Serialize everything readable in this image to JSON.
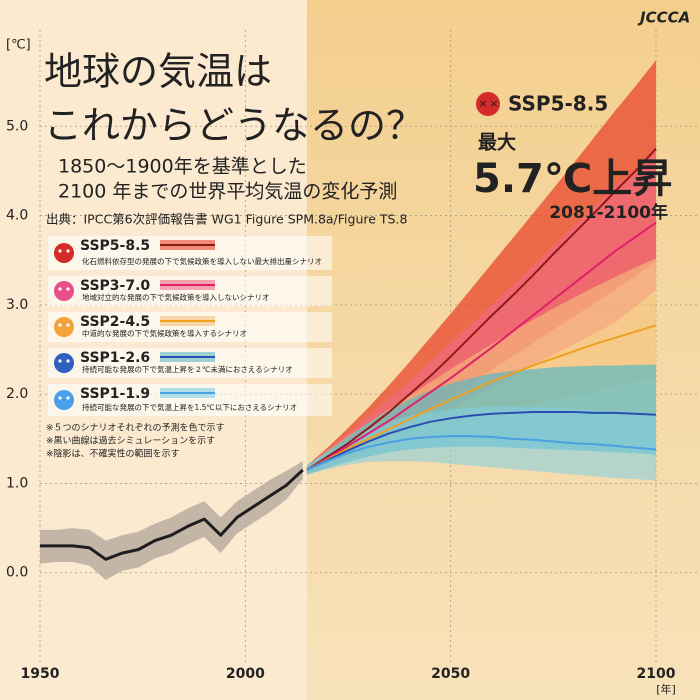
{
  "logo": "JCCCA",
  "chart_data": {
    "type": "line",
    "title_lines": [
      "地球の気温は",
      "これからどうなるの？"
    ],
    "subtitle_lines": [
      "1850～1900年を基準とした",
      "2100 年までの世界平均気温の変化予測"
    ],
    "source": "出典：IPCC第6次評価報告書 WG1 Figure SPM.8a/Figure TS.8",
    "y_unit": "[℃]",
    "x_unit": "[年]",
    "xlim": [
      1950,
      2100
    ],
    "xticks": [
      1950,
      2000,
      2050,
      2100
    ],
    "ylim": [
      -1,
      6
    ],
    "yticks": [
      {
        "value": 0,
        "label": "0.0"
      },
      {
        "value": 1,
        "label": "1.0"
      },
      {
        "value": 2,
        "label": "2.0"
      },
      {
        "value": 3,
        "label": "3.0"
      },
      {
        "value": 4,
        "label": "4.0"
      },
      {
        "value": 5,
        "label": "5.0"
      }
    ],
    "grid": true,
    "historical": {
      "color": "#1e1e1e",
      "band_color": "#b8ada0",
      "x": [
        1950,
        1954,
        1958,
        1962,
        1966,
        1970,
        1974,
        1978,
        1982,
        1986,
        1990,
        1994,
        1998,
        2002,
        2006,
        2010,
        2014
      ],
      "values": [
        0.3,
        0.3,
        0.3,
        0.28,
        0.15,
        0.22,
        0.26,
        0.36,
        0.42,
        0.52,
        0.6,
        0.42,
        0.62,
        0.74,
        0.86,
        0.98,
        1.15
      ],
      "lower": [
        0.1,
        0.12,
        0.12,
        0.08,
        -0.08,
        0.02,
        0.06,
        0.16,
        0.22,
        0.32,
        0.4,
        0.22,
        0.44,
        0.56,
        0.68,
        0.82,
        1.05
      ],
      "upper": [
        0.48,
        0.48,
        0.5,
        0.48,
        0.36,
        0.42,
        0.46,
        0.55,
        0.62,
        0.72,
        0.8,
        0.62,
        0.8,
        0.92,
        1.04,
        1.14,
        1.25
      ]
    },
    "series": [
      {
        "name": "SSP5-8.5",
        "description": "化石燃料依存型の発展の下で気候政策を導入しない最大排出量シナリオ",
        "color": "#8e1b1b",
        "band_color": "#e8452b",
        "icon_color": "#d42a2a",
        "x": [
          2015,
          2020,
          2025,
          2030,
          2035,
          2040,
          2045,
          2050,
          2055,
          2060,
          2065,
          2070,
          2075,
          2080,
          2085,
          2090,
          2095,
          2100
        ],
        "values": [
          1.15,
          1.3,
          1.45,
          1.62,
          1.8,
          2.0,
          2.2,
          2.42,
          2.65,
          2.88,
          3.1,
          3.33,
          3.57,
          3.8,
          4.03,
          4.27,
          4.5,
          4.75
        ],
        "lower": [
          1.1,
          1.2,
          1.3,
          1.42,
          1.55,
          1.68,
          1.82,
          1.97,
          2.12,
          2.27,
          2.42,
          2.57,
          2.72,
          2.87,
          3.02,
          3.17,
          3.32,
          3.5
        ],
        "upper": [
          1.2,
          1.4,
          1.62,
          1.85,
          2.1,
          2.36,
          2.63,
          2.9,
          3.18,
          3.46,
          3.74,
          4.02,
          4.3,
          4.59,
          4.88,
          5.17,
          5.45,
          5.74
        ]
      },
      {
        "name": "SSP3-7.0",
        "description": "地域対立的な発展の下で気候政策を導入しないシナリオ",
        "color": "#e0206a",
        "band_color": "#f06b8b",
        "icon_color": "#e8508a",
        "x": [
          2015,
          2020,
          2025,
          2030,
          2035,
          2040,
          2045,
          2050,
          2055,
          2060,
          2065,
          2070,
          2075,
          2080,
          2085,
          2090,
          2095,
          2100
        ],
        "values": [
          1.15,
          1.28,
          1.42,
          1.56,
          1.7,
          1.86,
          2.02,
          2.18,
          2.35,
          2.52,
          2.7,
          2.88,
          3.06,
          3.24,
          3.42,
          3.6,
          3.76,
          3.92
        ],
        "lower": [
          1.1,
          1.18,
          1.28,
          1.38,
          1.48,
          1.6,
          1.72,
          1.84,
          1.96,
          2.08,
          2.2,
          2.32,
          2.44,
          2.56,
          2.68,
          2.8,
          2.98,
          3.17
        ],
        "upper": [
          1.2,
          1.38,
          1.56,
          1.75,
          1.95,
          2.15,
          2.36,
          2.57,
          2.78,
          3.0,
          3.22,
          3.44,
          3.66,
          3.88,
          4.1,
          4.32,
          4.52,
          4.72
        ]
      },
      {
        "name": "SSP2-4.5",
        "description": "中道的な発展の下で気候政策を導入するシナリオ",
        "color": "#efa020",
        "band_color": "#f6c27a",
        "icon_color": "#f2a33a",
        "x": [
          2015,
          2020,
          2025,
          2030,
          2035,
          2040,
          2045,
          2050,
          2055,
          2060,
          2065,
          2070,
          2075,
          2080,
          2085,
          2090,
          2095,
          2100
        ],
        "values": [
          1.15,
          1.27,
          1.39,
          1.5,
          1.61,
          1.72,
          1.83,
          1.94,
          2.04,
          2.14,
          2.23,
          2.32,
          2.4,
          2.48,
          2.56,
          2.63,
          2.7,
          2.77
        ],
        "lower": [
          1.1,
          1.18,
          1.26,
          1.33,
          1.4,
          1.47,
          1.54,
          1.61,
          1.68,
          1.75,
          1.81,
          1.87,
          1.93,
          1.99,
          2.04,
          2.09,
          2.14,
          2.19
        ],
        "upper": [
          1.2,
          1.37,
          1.53,
          1.68,
          1.83,
          1.98,
          2.13,
          2.28,
          2.42,
          2.56,
          2.7,
          2.83,
          2.96,
          3.08,
          3.2,
          3.31,
          3.42,
          3.52
        ]
      },
      {
        "name": "SSP1-2.6",
        "description": "持続可能な発展の下で気温上昇を２℃未満におさえるシナリオ",
        "color": "#2a4fb0",
        "band_color": "#5bb8c0",
        "icon_color": "#2f5fc0",
        "x": [
          2015,
          2020,
          2025,
          2030,
          2035,
          2040,
          2045,
          2050,
          2055,
          2060,
          2065,
          2070,
          2075,
          2080,
          2085,
          2090,
          2095,
          2100
        ],
        "values": [
          1.15,
          1.26,
          1.37,
          1.47,
          1.56,
          1.63,
          1.69,
          1.73,
          1.76,
          1.78,
          1.79,
          1.8,
          1.8,
          1.8,
          1.79,
          1.79,
          1.78,
          1.77
        ],
        "lower": [
          1.1,
          1.17,
          1.24,
          1.3,
          1.35,
          1.38,
          1.4,
          1.41,
          1.41,
          1.41,
          1.4,
          1.39,
          1.38,
          1.37,
          1.36,
          1.35,
          1.34,
          1.32
        ],
        "upper": [
          1.2,
          1.36,
          1.52,
          1.68,
          1.82,
          1.94,
          2.04,
          2.12,
          2.18,
          2.23,
          2.26,
          2.28,
          2.3,
          2.31,
          2.32,
          2.32,
          2.33,
          2.33
        ]
      },
      {
        "name": "SSP1-1.9",
        "description": "持続可能な発展の下で気温上昇を1.5℃以下におさえるシナリオ",
        "color": "#4aa0e0",
        "band_color": "#7fcfe6",
        "icon_color": "#4a9fe8",
        "x": [
          2015,
          2020,
          2025,
          2030,
          2035,
          2040,
          2045,
          2050,
          2055,
          2060,
          2065,
          2070,
          2075,
          2080,
          2085,
          2090,
          2095,
          2100
        ],
        "values": [
          1.15,
          1.25,
          1.34,
          1.41,
          1.46,
          1.5,
          1.52,
          1.53,
          1.53,
          1.52,
          1.5,
          1.49,
          1.47,
          1.45,
          1.44,
          1.42,
          1.4,
          1.38
        ],
        "lower": [
          1.1,
          1.16,
          1.21,
          1.24,
          1.25,
          1.25,
          1.24,
          1.22,
          1.2,
          1.18,
          1.16,
          1.14,
          1.12,
          1.1,
          1.08,
          1.06,
          1.05,
          1.03
        ],
        "upper": [
          1.2,
          1.35,
          1.48,
          1.6,
          1.69,
          1.76,
          1.8,
          1.83,
          1.85,
          1.86,
          1.86,
          1.85,
          1.84,
          1.83,
          1.82,
          1.81,
          1.8,
          1.78
        ]
      }
    ],
    "notes": [
      "※５つのシナリオそれぞれの予測を色で示す",
      "※黒い曲線は過去シミュレーションを示す",
      "※陰影は、不確実性の範囲を示す"
    ],
    "annotation": {
      "label": "SSP5-8.5",
      "prefix": "最大",
      "value_text": "5.7℃上昇",
      "period": "2081-2100年"
    }
  }
}
